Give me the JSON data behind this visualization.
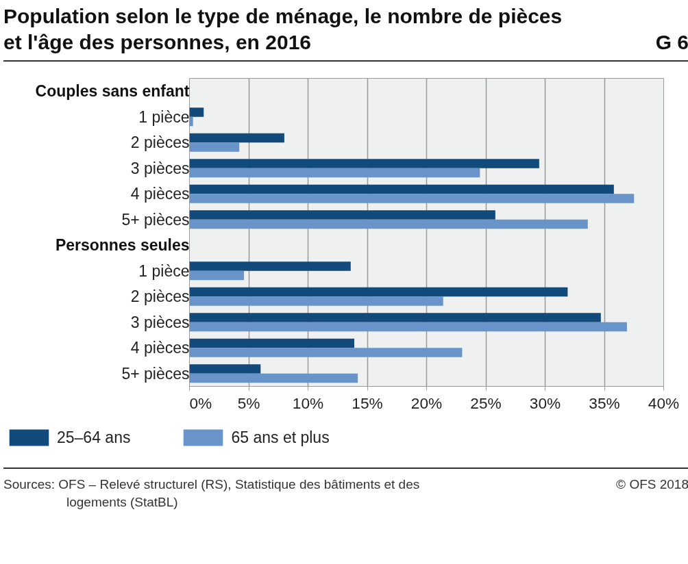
{
  "chart_data": {
    "type": "bar",
    "orientation": "horizontal",
    "title": "Population selon le type de ménage, le nombre de pièces et l'âge des personnes, en 2016",
    "categories": [
      "Couples sans enfant",
      "1 pièce",
      "2 pièces",
      "3 pièces",
      "4 pièces",
      "5+ pièces",
      "Personnes seules",
      "1 pièce",
      "2 pièces",
      "3 pièces",
      "4 pièces",
      "5+ pièces"
    ],
    "series": [
      {
        "name": "25–64 ans",
        "color": "#124a7c",
        "values": [
          null,
          1.2,
          8.0,
          29.5,
          35.8,
          25.8,
          null,
          13.6,
          31.9,
          34.7,
          13.9,
          6.0
        ]
      },
      {
        "name": "65 ans et plus",
        "color": "#6894c9",
        "values": [
          null,
          0.3,
          4.2,
          24.5,
          37.5,
          33.6,
          null,
          4.6,
          21.4,
          36.9,
          23.0,
          14.2
        ]
      }
    ],
    "xlim": [
      0,
      40
    ],
    "xticks": [
      {
        "value": 0,
        "label": "0%"
      },
      {
        "value": 5,
        "label": "5%"
      },
      {
        "value": 10,
        "label": "10%"
      },
      {
        "value": 15,
        "label": "15%"
      },
      {
        "value": 20,
        "label": "20%"
      },
      {
        "value": 25,
        "label": "25%"
      },
      {
        "value": 30,
        "label": "30%"
      },
      {
        "value": 35,
        "label": "35%"
      },
      {
        "value": 40,
        "label": "40%"
      }
    ],
    "grid": "x",
    "legend": "bottom",
    "annotations": [
      "G 6",
      "Sources: OFS – Relevé structurel (RS), Statistique des bâtiments et des logements (StatBL)",
      "© OFS 2018"
    ]
  }
}
